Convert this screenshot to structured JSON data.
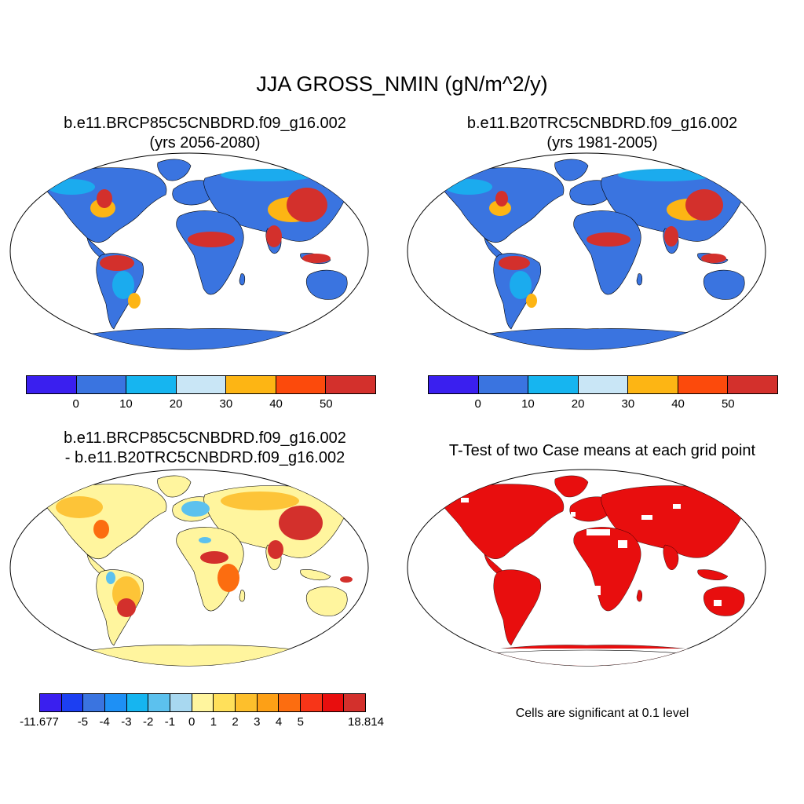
{
  "title": "JJA GROSS_NMIN (gN/m^2/y)",
  "panels": [
    {
      "line1": "b.e11.BRCP85C5CNBDRD.f09_g16.002",
      "line2": "(yrs 2056-2080)"
    },
    {
      "line1": "b.e11.B20TRC5CNBDRD.f09_g16.002",
      "line2": "(yrs 1981-2005)"
    },
    {
      "line1": "b.e11.BRCP85C5CNBDRD.f09_g16.002",
      "line2": "- b.e11.B20TRC5CNBDRD.f09_g16.002"
    },
    {
      "line1": "T-Test of two Case means at each grid point",
      "line2": ""
    }
  ],
  "colorbar_top": {
    "colors": [
      "#3a1fef",
      "#3a74e0",
      "#16b5f0",
      "#c9e6f6",
      "#fdb514",
      "#fc4a0c",
      "#d3302c"
    ],
    "labels": [
      "0",
      "10",
      "20",
      "30",
      "40",
      "50"
    ]
  },
  "colorbar_diff": {
    "colors": [
      "#3a1fef",
      "#1c3ff2",
      "#3a74e0",
      "#1e90f5",
      "#16b5f0",
      "#5cc1ee",
      "#a8d8f0",
      "#fff59e",
      "#ffe05a",
      "#fdbf2c",
      "#fda016",
      "#fc6d10",
      "#f73518",
      "#e80e0e",
      "#d3302c"
    ],
    "labels": [
      "-11.677",
      "-5",
      "-4",
      "-3",
      "-2",
      "-1",
      "0",
      "1",
      "2",
      "3",
      "4",
      "5",
      "18.814"
    ]
  },
  "significance_note": "Cells are significant at 0.1 level",
  "map_colors": {
    "land_low": "#3a74e0",
    "land_mid": "#16b5f0",
    "land_high": "#d3302c",
    "land_warm": "#fdb514",
    "diff_base": "#fff59e",
    "significant": "#e80e0e"
  }
}
